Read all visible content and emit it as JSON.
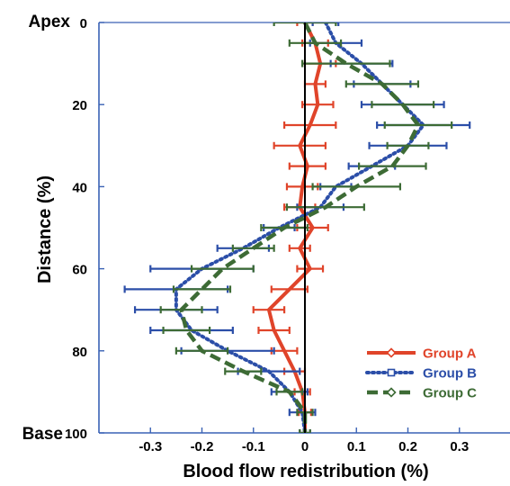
{
  "chart_data": {
    "type": "line",
    "title": "",
    "xlabel": "Blood flow redistribution (%)",
    "ylabel": "Distance (%)",
    "y_end_labels": {
      "top": "Apex",
      "bottom": "Base"
    },
    "xlim": [
      -0.4,
      0.4
    ],
    "ylim": [
      0,
      100
    ],
    "y_inverted": true,
    "x_ticks": [
      -0.3,
      -0.2,
      -0.1,
      0,
      0.1,
      0.2,
      0.3
    ],
    "x_tick_labels": [
      "-0.3",
      "-0.2",
      "-0.1",
      "0",
      "0.1",
      "0.2",
      "0.3"
    ],
    "y_ticks": [
      0,
      20,
      40,
      60,
      80,
      100
    ],
    "y_tick_labels": [
      "0",
      "20",
      "40",
      "60",
      "80",
      "100"
    ],
    "grid": false,
    "legend_position": "bottom-right",
    "series": [
      {
        "name": "Group A",
        "color": "#e0442a",
        "dash": "solid",
        "marker": "diamond",
        "distance": [
          0,
          5,
          10,
          15,
          20,
          25,
          30,
          35,
          40,
          45,
          50,
          55,
          60,
          65,
          70,
          75,
          80,
          85,
          90,
          95,
          100
        ],
        "values": [
          0.0,
          0.02,
          0.03,
          0.02,
          0.025,
          0.01,
          -0.01,
          0.005,
          -0.005,
          -0.01,
          0.015,
          -0.01,
          0.01,
          -0.03,
          -0.07,
          -0.06,
          -0.04,
          -0.02,
          -0.005,
          0.0,
          0.0
        ],
        "errors": [
          0.015,
          0.025,
          0.03,
          0.02,
          0.03,
          0.05,
          0.05,
          0.035,
          0.03,
          0.03,
          0.03,
          0.02,
          0.025,
          0.035,
          0.03,
          0.03,
          0.025,
          0.02,
          0.015,
          0.012,
          0.01
        ]
      },
      {
        "name": "Group B",
        "color": "#2b4ea8",
        "dash": "dotted",
        "marker": "square",
        "distance": [
          0,
          5,
          10,
          15,
          20,
          25,
          30,
          35,
          40,
          45,
          50,
          55,
          60,
          65,
          70,
          75,
          80,
          85,
          90,
          95,
          100
        ],
        "values": [
          0.04,
          0.06,
          0.11,
          0.15,
          0.19,
          0.23,
          0.2,
          0.13,
          0.06,
          0.03,
          -0.05,
          -0.12,
          -0.2,
          -0.25,
          -0.25,
          -0.22,
          -0.15,
          -0.07,
          -0.03,
          -0.005,
          0.0
        ],
        "errors": [
          0.025,
          0.05,
          0.06,
          0.055,
          0.08,
          0.09,
          0.075,
          0.045,
          0.03,
          0.045,
          0.03,
          0.05,
          0.1,
          0.1,
          0.08,
          0.08,
          0.09,
          0.06,
          0.035,
          0.025,
          0.01
        ]
      },
      {
        "name": "Group C",
        "color": "#3d6b35",
        "dash": "dashed",
        "marker": "diamond",
        "distance": [
          0,
          5,
          10,
          15,
          20,
          25,
          30,
          35,
          40,
          45,
          50,
          55,
          60,
          65,
          70,
          75,
          80,
          85,
          90,
          95,
          100
        ],
        "values": [
          0.0,
          0.02,
          0.08,
          0.15,
          0.19,
          0.22,
          0.2,
          0.17,
          0.1,
          0.04,
          -0.04,
          -0.1,
          -0.16,
          -0.2,
          -0.24,
          -0.23,
          -0.2,
          -0.12,
          -0.03,
          0.0,
          0.0
        ],
        "errors": [
          0.06,
          0.05,
          0.085,
          0.07,
          0.06,
          0.065,
          0.04,
          0.065,
          0.085,
          0.075,
          0.045,
          0.04,
          0.06,
          0.055,
          0.04,
          0.045,
          0.05,
          0.035,
          0.025,
          0.015,
          0.01
        ]
      }
    ]
  }
}
